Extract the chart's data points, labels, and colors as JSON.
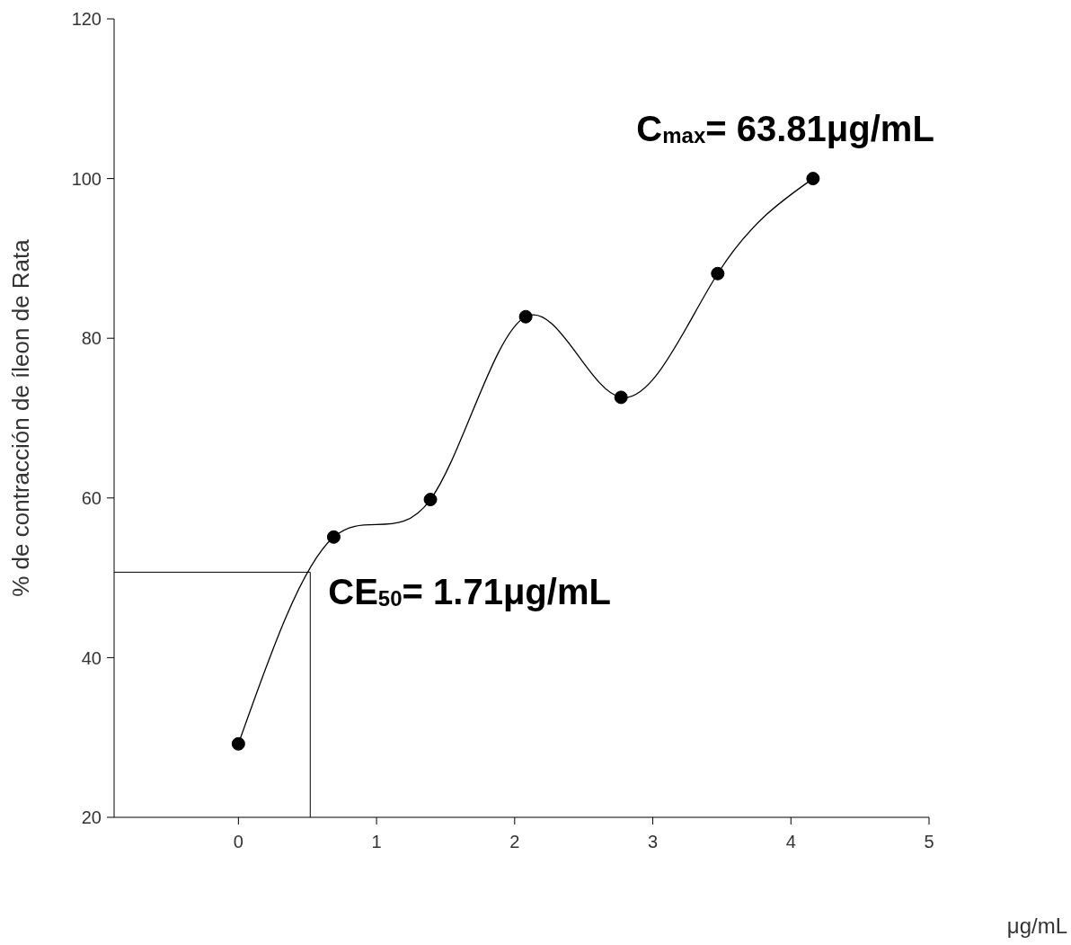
{
  "chart_data": {
    "type": "line",
    "xlabel": "μg/mL",
    "ylabel": "% de contracción de íleon de Rata",
    "x": [
      0,
      0.69,
      1.39,
      2.08,
      2.77,
      3.47,
      4.16
    ],
    "series": [
      {
        "color": "#000000",
        "values": [
          29.2,
          55.1,
          59.8,
          82.7,
          72.6,
          88.1,
          100
        ]
      }
    ],
    "xlim": [
      -0.9,
      5
    ],
    "xticks": [
      0,
      1,
      2,
      3,
      4,
      5
    ],
    "ylim": [
      20,
      120
    ],
    "yticks": [
      20,
      40,
      60,
      80,
      100,
      120
    ],
    "marker": "circle",
    "line_style": "solid",
    "grid": false,
    "legend": false,
    "ref_lines": [
      {
        "axis": "y",
        "value": 50.7
      },
      {
        "axis": "x",
        "value": 0.52
      }
    ],
    "annotations": [
      {
        "text": "C$_{max}$= 63.81μg/mL",
        "x": 4.16,
        "y": 100
      },
      {
        "text": "CE$_{50}$= 1.71μg/mL",
        "x": 0.52,
        "y": 50.7
      }
    ]
  }
}
